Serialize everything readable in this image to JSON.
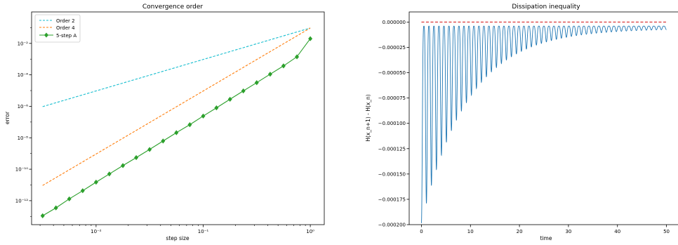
{
  "chart_data": [
    {
      "type": "line",
      "title": "Convergence order",
      "xlabel": "step size",
      "ylabel": "error",
      "xscale": "log",
      "yscale": "log",
      "xlim": [
        0.0025,
        1.35
      ],
      "ylim": [
        3e-14,
        1.0
      ],
      "grid": false,
      "legend_position": "top-left",
      "xticks": [
        {
          "value": 0.01,
          "label": "10⁻²"
        },
        {
          "value": 0.1,
          "label": "10⁻¹"
        },
        {
          "value": 1,
          "label": "10⁰"
        }
      ],
      "yticks": [
        {
          "value": 1e-12,
          "label": "10⁻¹²"
        },
        {
          "value": 1e-10,
          "label": "10⁻¹⁰"
        },
        {
          "value": 1e-08,
          "label": "10⁻⁸"
        },
        {
          "value": 1e-06,
          "label": "10⁻⁶"
        },
        {
          "value": 0.0001,
          "label": "10⁻⁴"
        },
        {
          "value": 0.01,
          "label": "10⁻²"
        }
      ],
      "series": [
        {
          "name": "Order 2",
          "color": "#17becf",
          "style": "dashed",
          "marker": "none",
          "x": [
            0.00317,
            1.0
          ],
          "y": [
            9.5e-07,
            0.095
          ]
        },
        {
          "name": "Order 4",
          "color": "#ff7f0e",
          "style": "dashed",
          "marker": "none",
          "x": [
            0.00317,
            1.0
          ],
          "y": [
            9.3e-12,
            0.095
          ]
        },
        {
          "name": "5-step A",
          "color": "#2ca02c",
          "style": "solid",
          "marker": "diamond",
          "x": [
            0.00317,
            0.00422,
            0.00562,
            0.0075,
            0.01,
            0.0133,
            0.0178,
            0.0237,
            0.0316,
            0.0422,
            0.0562,
            0.075,
            0.1,
            0.133,
            0.178,
            0.237,
            0.316,
            0.422,
            0.562,
            0.75,
            1.0
          ],
          "y": [
            1.1e-13,
            3.5e-13,
            1.3e-12,
            4.3e-12,
            1.5e-11,
            5e-11,
            1.7e-10,
            5.5e-10,
            1.8e-09,
            6.2e-09,
            2.1e-08,
            6.8e-08,
            2.4e-07,
            8e-07,
            2.8e-06,
            9.5e-06,
            3.2e-05,
            0.00011,
            0.00037,
            0.0014,
            0.02
          ]
        }
      ]
    },
    {
      "type": "line",
      "title": "Dissipation inequality",
      "xlabel": "time",
      "ylabel": "H(x_n+1) - H(x_n)",
      "xlim": [
        -2.5,
        52.5
      ],
      "ylim": [
        -0.0002,
        1e-05
      ],
      "grid": false,
      "xticks": [
        {
          "value": 0,
          "label": "0"
        },
        {
          "value": 10,
          "label": "10"
        },
        {
          "value": 20,
          "label": "20"
        },
        {
          "value": 30,
          "label": "30"
        },
        {
          "value": 40,
          "label": "40"
        },
        {
          "value": 50,
          "label": "50"
        }
      ],
      "yticks": [
        {
          "value": 0,
          "label": "0.000000"
        },
        {
          "value": -2.5e-05,
          "label": "−0.000025"
        },
        {
          "value": -5e-05,
          "label": "−0.000050"
        },
        {
          "value": -7.5e-05,
          "label": "−0.000075"
        },
        {
          "value": -0.0001,
          "label": "−0.000100"
        },
        {
          "value": -0.000125,
          "label": "−0.000125"
        },
        {
          "value": -0.00015,
          "label": "−0.000150"
        },
        {
          "value": -0.000175,
          "label": "−0.000175"
        },
        {
          "value": -0.0002,
          "label": "−0.000200"
        }
      ],
      "series": [
        {
          "color": "#1f77b4",
          "style": "solid",
          "t_start": 0,
          "t_end": 50,
          "oscillation_period": 1.02,
          "trough_at_t0": -0.000192,
          "decay_time": 9.5,
          "peak_gap": 4e-06
        },
        {
          "color": "#d62728",
          "style": "dashed",
          "x": [
            0,
            50
          ],
          "y": [
            0,
            0
          ]
        }
      ]
    }
  ]
}
